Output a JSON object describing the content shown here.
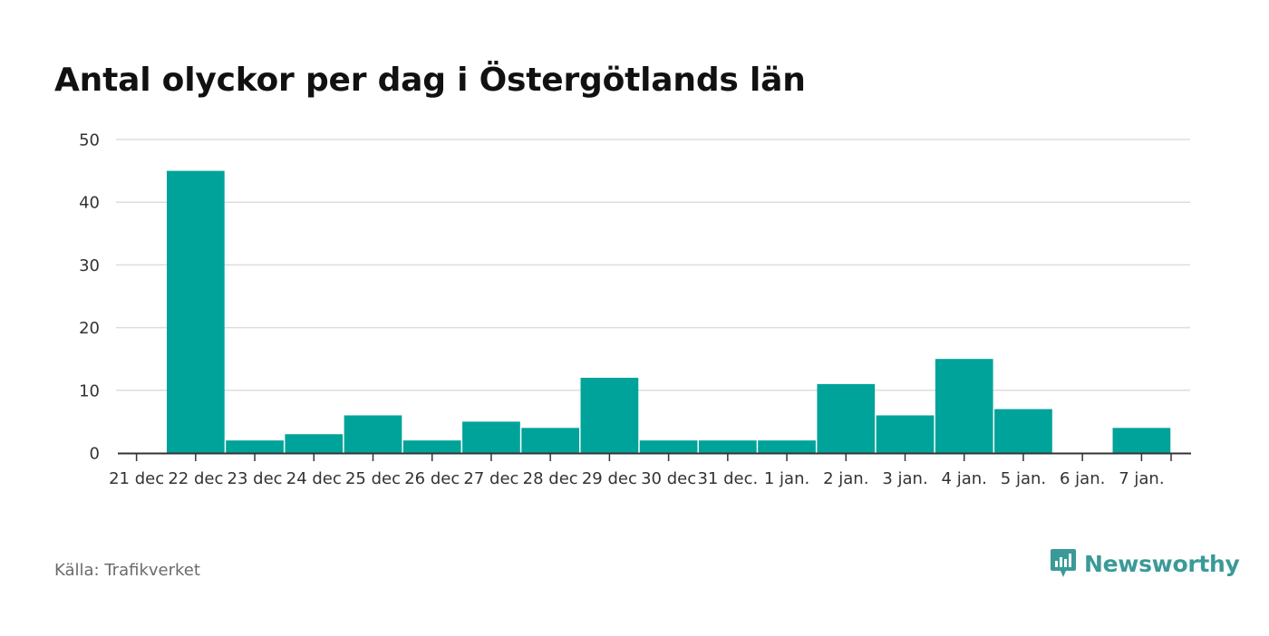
{
  "title": "Antal olyckor per dag i Östergötlands län",
  "source": "Källa: Trafikverket",
  "brand": "Newsworthy",
  "colors": {
    "bar": "#00a39a",
    "grid": "#dddddd",
    "axis": "#333333",
    "brand": "#3a9a97"
  },
  "chart_data": {
    "type": "bar",
    "categories": [
      "21 dec",
      "22 dec",
      "23 dec",
      "24 dec",
      "25 dec",
      "26 dec",
      "27 dec",
      "28 dec",
      "29 dec",
      "30 dec",
      "31 dec.",
      "1 jan.",
      "2 jan.",
      "3 jan.",
      "4 jan.",
      "5 jan.",
      "6 jan.",
      "7 jan."
    ],
    "values": [
      0,
      45,
      2,
      3,
      6,
      2,
      5,
      4,
      12,
      2,
      2,
      2,
      11,
      6,
      15,
      7,
      0,
      4
    ],
    "title": "Antal olyckor per dag i Östergötlands län",
    "xlabel": "",
    "ylabel": "",
    "ylim": [
      0,
      50
    ],
    "yticks": [
      0,
      10,
      20,
      30,
      40,
      50
    ],
    "grid": true
  }
}
